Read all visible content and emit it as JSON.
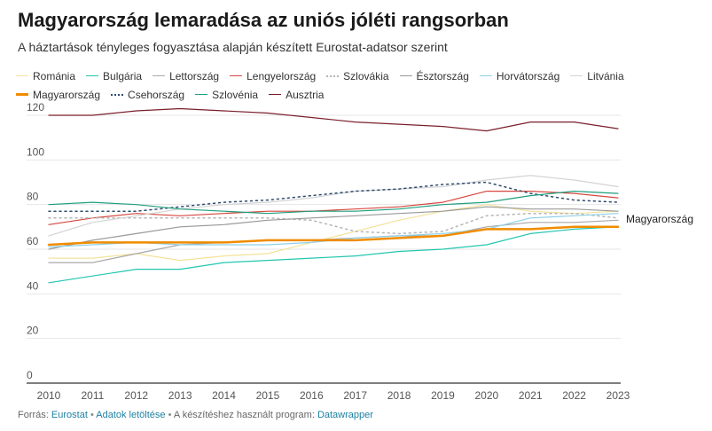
{
  "header": {
    "title": "Magyarország lemaradása az uniós jóléti rangsorban",
    "subtitle": "A háztartások tényleges fogyasztása alapján készített Eurostat-adatsor szerint"
  },
  "footer": {
    "source_label": "Forrás:",
    "source_link": "Eurostat",
    "sep1": "•",
    "download_link": "Adatok letöltése",
    "sep2": "•",
    "tool_text": "A készítéshez használt program:",
    "tool_link": "Datawrapper"
  },
  "chart_data": {
    "type": "line",
    "title": "Magyarország lemaradása az uniós jóléti rangsorban",
    "subtitle": "A háztartások tényleges fogyasztása alapján készített Eurostat-adatsor szerint",
    "x": [
      2010,
      2011,
      2012,
      2013,
      2014,
      2015,
      2016,
      2017,
      2018,
      2019,
      2020,
      2021,
      2022,
      2023
    ],
    "ylim": [
      0,
      125
    ],
    "yticks": [
      0,
      20,
      40,
      60,
      80,
      100,
      120
    ],
    "grid": true,
    "legend_position": "top",
    "end_label": "Magyarország",
    "series": [
      {
        "name": "Románia",
        "color": "#f3e29a",
        "style": "solid",
        "values": [
          56,
          56,
          58,
          55,
          57,
          58,
          63,
          68,
          73,
          77,
          80,
          77,
          76,
          77
        ]
      },
      {
        "name": "Bulgária",
        "color": "#23c6b0",
        "style": "solid",
        "values": [
          45,
          48,
          51,
          51,
          54,
          55,
          56,
          57,
          59,
          60,
          62,
          67,
          69,
          70
        ]
      },
      {
        "name": "Lettország",
        "color": "#a9a9a9",
        "style": "solid",
        "values": [
          54,
          54,
          58,
          62,
          63,
          64,
          64,
          65,
          66,
          66,
          70,
          72,
          72,
          73
        ]
      },
      {
        "name": "Lengyelország",
        "color": "#d6483f",
        "style": "solid",
        "values": [
          71,
          74,
          76,
          75,
          76,
          77,
          77,
          78,
          79,
          81,
          86,
          86,
          85,
          83
        ]
      },
      {
        "name": "Szlovákia",
        "color": "#b5b5b5",
        "style": "dotted",
        "values": [
          74,
          74,
          74,
          74,
          74,
          74,
          73,
          68,
          67,
          68,
          75,
          76,
          76,
          74
        ]
      },
      {
        "name": "Észtország",
        "color": "#999999",
        "style": "solid",
        "values": [
          60,
          64,
          67,
          70,
          71,
          73,
          74,
          75,
          76,
          77,
          79,
          78,
          78,
          77
        ]
      },
      {
        "name": "Horvátország",
        "color": "#8fd0e8",
        "style": "solid",
        "values": [
          61,
          62,
          63,
          62,
          62,
          62,
          63,
          65,
          66,
          67,
          69,
          74,
          75,
          76
        ]
      },
      {
        "name": "Litvánia",
        "color": "#d3d3d3",
        "style": "solid",
        "values": [
          66,
          72,
          75,
          78,
          80,
          81,
          83,
          86,
          87,
          88,
          91,
          93,
          91,
          88
        ]
      },
      {
        "name": "Magyarország",
        "color": "#f08c00",
        "style": "bold",
        "values": [
          62,
          63,
          63,
          63,
          63,
          64,
          64,
          64,
          65,
          66,
          69,
          69,
          70,
          70
        ]
      },
      {
        "name": "Csehország",
        "color": "#2f4c6e",
        "style": "dotted",
        "values": [
          77,
          77,
          77,
          79,
          81,
          82,
          84,
          86,
          87,
          89,
          90,
          85,
          82,
          81
        ]
      },
      {
        "name": "Szlovénia",
        "color": "#1f9e7e",
        "style": "solid",
        "values": [
          80,
          81,
          80,
          78,
          77,
          76,
          77,
          77,
          78,
          80,
          81,
          84,
          86,
          85
        ]
      },
      {
        "name": "Ausztria",
        "color": "#7a1f2b",
        "style": "solid",
        "values": [
          120,
          120,
          122,
          123,
          122,
          121,
          119,
          117,
          116,
          115,
          113,
          117,
          117,
          114
        ]
      }
    ]
  }
}
